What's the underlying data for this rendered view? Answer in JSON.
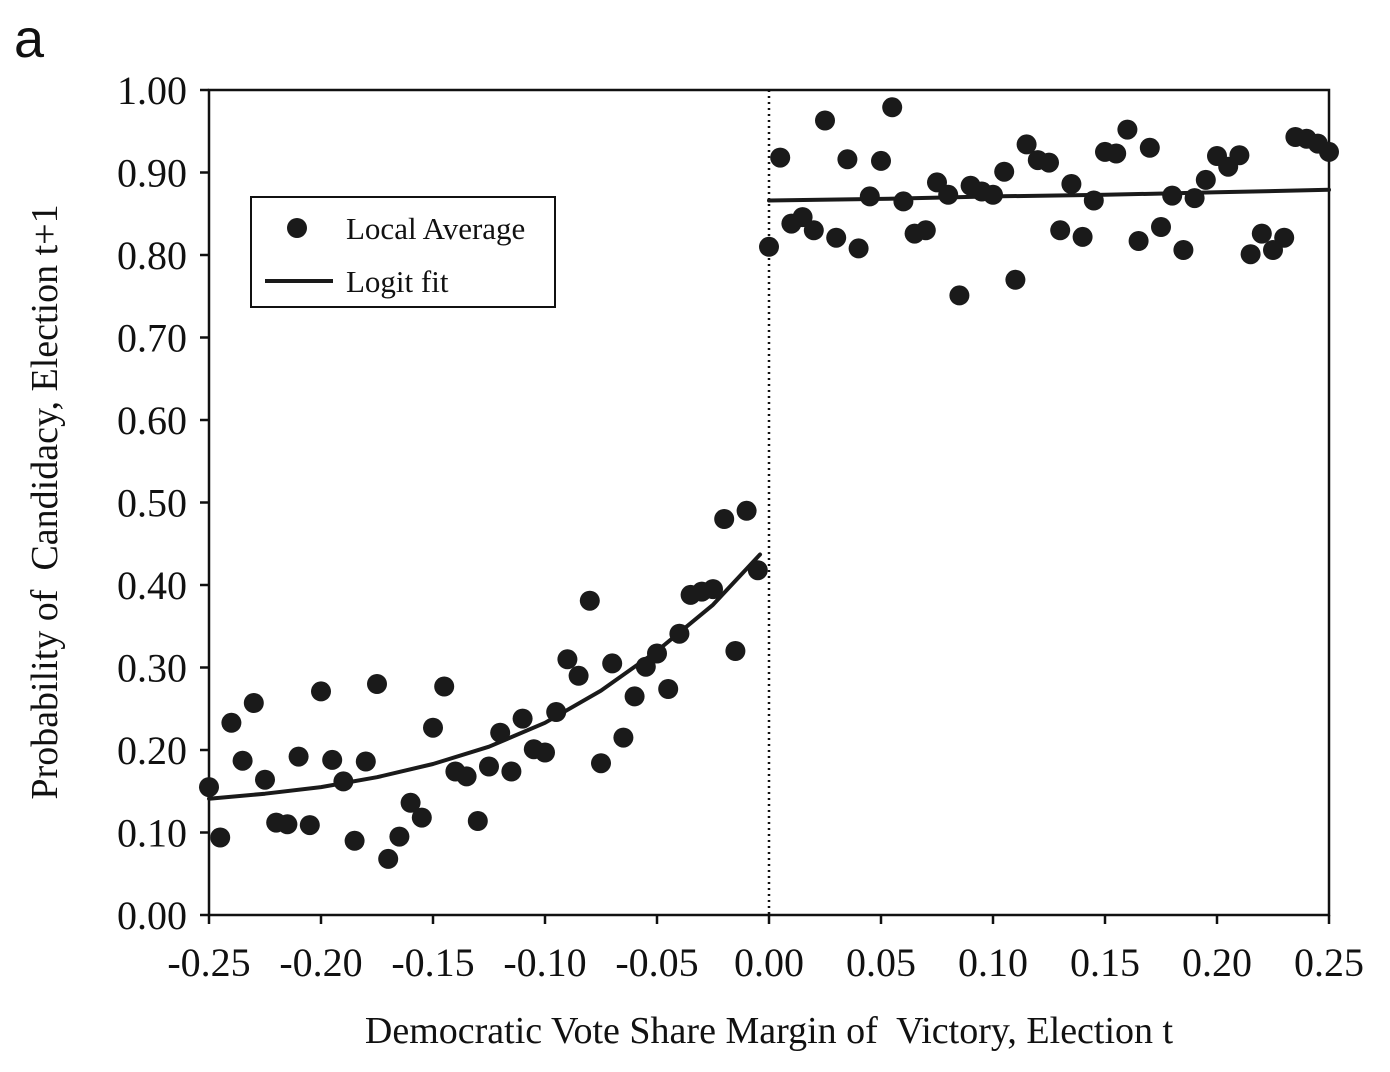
{
  "panel_label": "a",
  "chart_data": {
    "type": "scatter",
    "xlabel": "Democratic Vote Share Margin of  Victory, Election t",
    "ylabel": "Probability of  Candidacy, Election t+1",
    "xlim": [
      -0.25,
      0.25
    ],
    "ylim": [
      0.0,
      1.0
    ],
    "x_ticks": [
      "-0.25",
      "-0.20",
      "-0.15",
      "-0.10",
      "-0.05",
      "0.00",
      "0.05",
      "0.10",
      "0.15",
      "0.20",
      "0.25"
    ],
    "y_ticks": [
      "0.00",
      "0.10",
      "0.20",
      "0.30",
      "0.40",
      "0.50",
      "0.60",
      "0.70",
      "0.80",
      "0.90",
      "1.00"
    ],
    "cutoff_x": 0.0,
    "legend": {
      "position": "top-left",
      "entries": [
        {
          "label": "Local Average",
          "marker": "dot"
        },
        {
          "label": "Logit fit",
          "marker": "line"
        }
      ]
    },
    "series": [
      {
        "name": "Local Average",
        "kind": "scatter",
        "color": "#1a1a1a",
        "points": [
          [
            -0.25,
            0.155
          ],
          [
            -0.245,
            0.094
          ],
          [
            -0.24,
            0.233
          ],
          [
            -0.235,
            0.187
          ],
          [
            -0.23,
            0.257
          ],
          [
            -0.225,
            0.164
          ],
          [
            -0.22,
            0.112
          ],
          [
            -0.215,
            0.11
          ],
          [
            -0.21,
            0.192
          ],
          [
            -0.205,
            0.109
          ],
          [
            -0.2,
            0.271
          ],
          [
            -0.195,
            0.188
          ],
          [
            -0.19,
            0.162
          ],
          [
            -0.185,
            0.09
          ],
          [
            -0.18,
            0.186
          ],
          [
            -0.175,
            0.28
          ],
          [
            -0.17,
            0.068
          ],
          [
            -0.165,
            0.095
          ],
          [
            -0.16,
            0.136
          ],
          [
            -0.155,
            0.118
          ],
          [
            -0.15,
            0.227
          ],
          [
            -0.145,
            0.277
          ],
          [
            -0.14,
            0.174
          ],
          [
            -0.135,
            0.168
          ],
          [
            -0.13,
            0.114
          ],
          [
            -0.125,
            0.18
          ],
          [
            -0.12,
            0.221
          ],
          [
            -0.115,
            0.174
          ],
          [
            -0.11,
            0.238
          ],
          [
            -0.105,
            0.201
          ],
          [
            -0.1,
            0.197
          ],
          [
            -0.095,
            0.246
          ],
          [
            -0.09,
            0.31
          ],
          [
            -0.085,
            0.29
          ],
          [
            -0.08,
            0.381
          ],
          [
            -0.075,
            0.184
          ],
          [
            -0.07,
            0.305
          ],
          [
            -0.065,
            0.215
          ],
          [
            -0.06,
            0.265
          ],
          [
            -0.055,
            0.301
          ],
          [
            -0.05,
            0.317
          ],
          [
            -0.045,
            0.274
          ],
          [
            -0.04,
            0.341
          ],
          [
            -0.035,
            0.388
          ],
          [
            -0.03,
            0.392
          ],
          [
            -0.025,
            0.395
          ],
          [
            -0.02,
            0.48
          ],
          [
            -0.015,
            0.32
          ],
          [
            -0.01,
            0.49
          ],
          [
            -0.005,
            0.418
          ],
          [
            0.0,
            0.81
          ],
          [
            0.005,
            0.918
          ],
          [
            0.01,
            0.838
          ],
          [
            0.015,
            0.846
          ],
          [
            0.02,
            0.83
          ],
          [
            0.025,
            0.963
          ],
          [
            0.03,
            0.821
          ],
          [
            0.035,
            0.916
          ],
          [
            0.04,
            0.808
          ],
          [
            0.045,
            0.871
          ],
          [
            0.05,
            0.914
          ],
          [
            0.055,
            0.979
          ],
          [
            0.06,
            0.865
          ],
          [
            0.065,
            0.826
          ],
          [
            0.07,
            0.83
          ],
          [
            0.075,
            0.888
          ],
          [
            0.08,
            0.873
          ],
          [
            0.085,
            0.751
          ],
          [
            0.09,
            0.884
          ],
          [
            0.095,
            0.877
          ],
          [
            0.1,
            0.873
          ],
          [
            0.105,
            0.901
          ],
          [
            0.11,
            0.77
          ],
          [
            0.115,
            0.934
          ],
          [
            0.12,
            0.915
          ],
          [
            0.125,
            0.912
          ],
          [
            0.13,
            0.83
          ],
          [
            0.135,
            0.886
          ],
          [
            0.14,
            0.822
          ],
          [
            0.145,
            0.866
          ],
          [
            0.15,
            0.925
          ],
          [
            0.155,
            0.923
          ],
          [
            0.16,
            0.952
          ],
          [
            0.165,
            0.817
          ],
          [
            0.17,
            0.93
          ],
          [
            0.175,
            0.834
          ],
          [
            0.18,
            0.872
          ],
          [
            0.185,
            0.806
          ],
          [
            0.19,
            0.869
          ],
          [
            0.195,
            0.891
          ],
          [
            0.2,
            0.92
          ],
          [
            0.205,
            0.907
          ],
          [
            0.21,
            0.921
          ],
          [
            0.215,
            0.801
          ],
          [
            0.22,
            0.826
          ],
          [
            0.225,
            0.806
          ],
          [
            0.23,
            0.821
          ],
          [
            0.235,
            0.943
          ],
          [
            0.24,
            0.941
          ],
          [
            0.245,
            0.935
          ],
          [
            0.25,
            0.925
          ]
        ]
      },
      {
        "name": "Logit fit",
        "kind": "line",
        "segments": [
          {
            "points": [
              [
                -0.25,
                0.141
              ],
              [
                -0.225,
                0.147
              ],
              [
                -0.2,
                0.155
              ],
              [
                -0.175,
                0.167
              ],
              [
                -0.15,
                0.183
              ],
              [
                -0.125,
                0.204
              ],
              [
                -0.1,
                0.233
              ],
              [
                -0.075,
                0.272
              ],
              [
                -0.05,
                0.32
              ],
              [
                -0.025,
                0.376
              ],
              [
                -0.004,
                0.437
              ]
            ]
          },
          {
            "points": [
              [
                0.0,
                0.866
              ],
              [
                0.05,
                0.868
              ],
              [
                0.1,
                0.871
              ],
              [
                0.15,
                0.873
              ],
              [
                0.2,
                0.876
              ],
              [
                0.25,
                0.879
              ]
            ]
          }
        ]
      }
    ]
  }
}
